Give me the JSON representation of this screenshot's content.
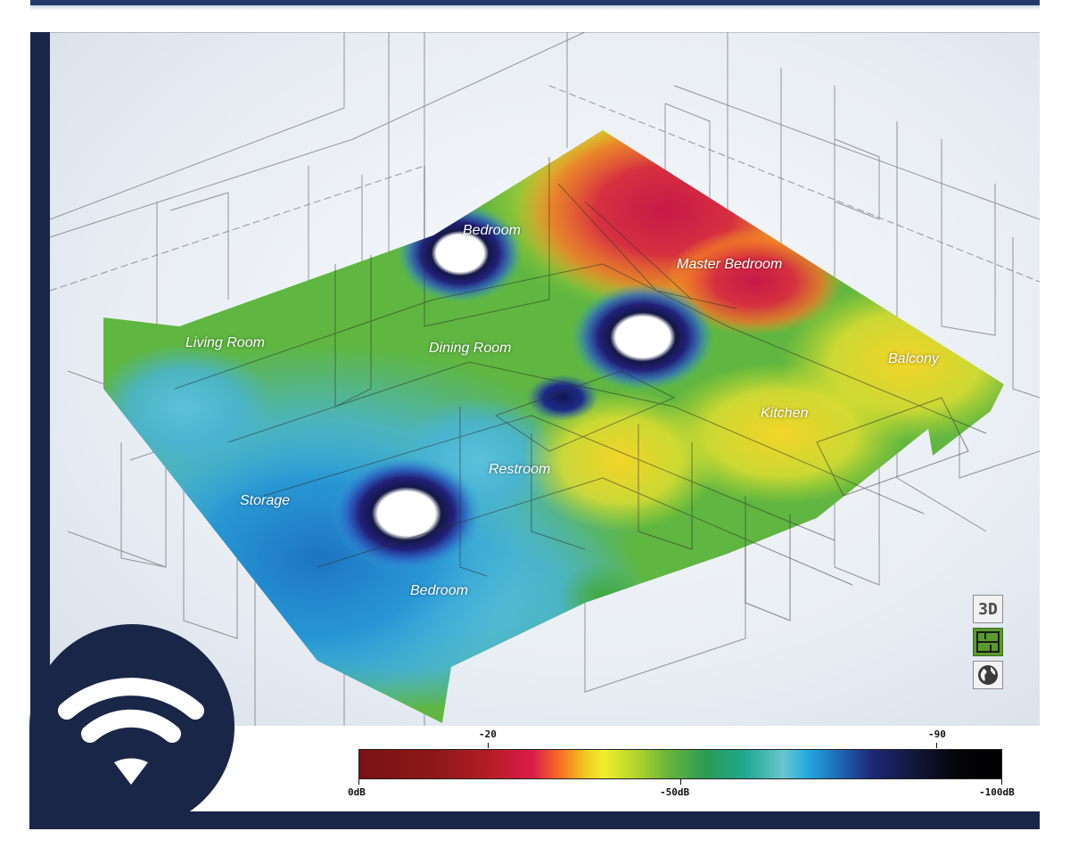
{
  "rooms": {
    "bedroom_upper": "Bedroom",
    "master_bedroom": "Master Bedroom",
    "living_room": "Living Room",
    "dining_room": "Dining Room",
    "balcony": "Balcony",
    "kitchen": "Kitchen",
    "restroom": "Restroom",
    "storage": "Storage",
    "bedroom_lower": "Bedroom"
  },
  "view_controls": {
    "btn_3d_label": "3D",
    "btn_plan_icon": "floor-plan-icon",
    "btn_globe_icon": "globe-icon",
    "active": "floor-plan"
  },
  "legend": {
    "top_ticks": [
      "-20",
      "-90"
    ],
    "bottom_ticks": [
      "0dB",
      "-50dB",
      "-100dB"
    ],
    "colors": [
      "#7a1214",
      "#dc1c4a",
      "#f3c520",
      "#6ab53a",
      "#1fa88f",
      "#22a7e0",
      "#1e2874",
      "#000000"
    ]
  },
  "badge_icon": "wifi-icon"
}
